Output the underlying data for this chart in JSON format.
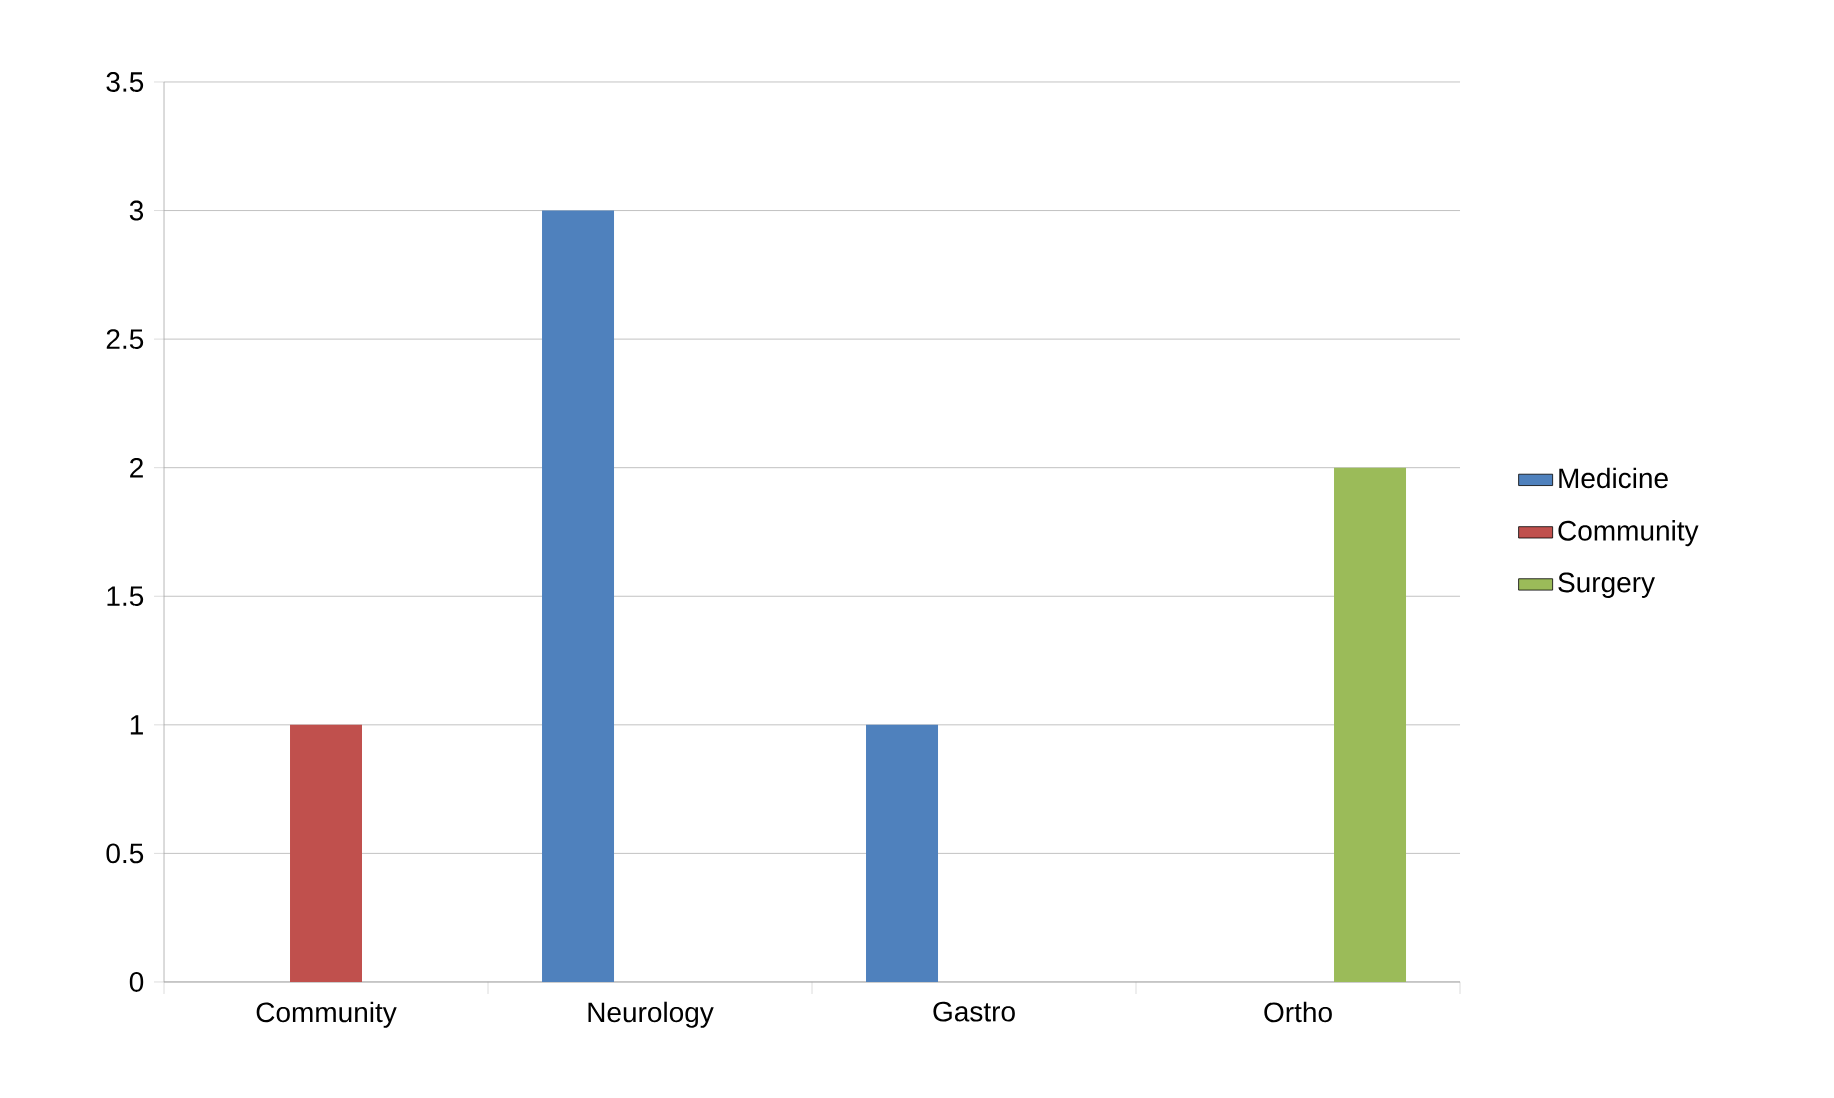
{
  "chart_data": {
    "type": "bar",
    "categories": [
      "Community",
      "Neurology",
      "Gastro",
      "Ortho"
    ],
    "series": [
      {
        "name": "Medicine",
        "color": "#4f81bd",
        "values": [
          null,
          3,
          1,
          null
        ]
      },
      {
        "name": "Community",
        "color": "#c0504d",
        "values": [
          1,
          null,
          null,
          null
        ]
      },
      {
        "name": "Surgery",
        "color": "#9bbb59",
        "values": [
          null,
          null,
          null,
          2
        ]
      }
    ],
    "ylim": [
      0,
      3.5
    ],
    "yticks": [
      0,
      0.5,
      1,
      1.5,
      2,
      2.5,
      3,
      3.5
    ],
    "grid": "y",
    "legend": "right"
  }
}
